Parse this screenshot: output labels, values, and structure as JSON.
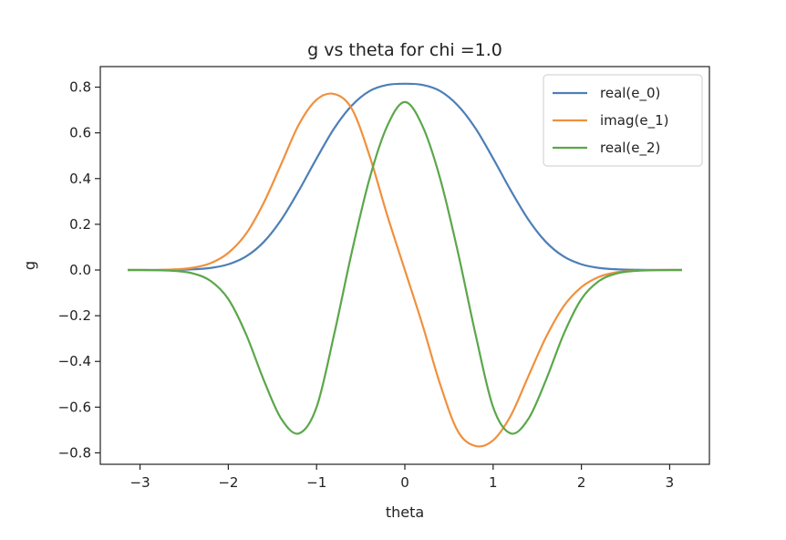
{
  "chart_data": {
    "type": "line",
    "title": "g vs theta for chi =1.0",
    "xlabel": "theta",
    "ylabel": "g",
    "xlim": [
      -3.45,
      3.45
    ],
    "ylim": [
      -0.85,
      0.89
    ],
    "xticks": [
      -3,
      -2,
      -1,
      0,
      1,
      2,
      3
    ],
    "xtick_labels": [
      "−3",
      "−2",
      "−1",
      "0",
      "1",
      "2",
      "3"
    ],
    "yticks": [
      -0.8,
      -0.6,
      -0.4,
      -0.2,
      0.0,
      0.2,
      0.4,
      0.6,
      0.8
    ],
    "ytick_labels": [
      "−0.8",
      "−0.6",
      "−0.4",
      "−0.2",
      "0.0",
      "0.2",
      "0.4",
      "0.6",
      "0.8"
    ],
    "grid": false,
    "legend_position": "top-right",
    "x": [
      -3.14,
      -3.0,
      -2.8,
      -2.6,
      -2.4,
      -2.2,
      -2.0,
      -1.8,
      -1.6,
      -1.4,
      -1.2,
      -1.0,
      -0.8,
      -0.6,
      -0.4,
      -0.2,
      0.0,
      0.2,
      0.4,
      0.6,
      0.8,
      1.0,
      1.2,
      1.4,
      1.6,
      1.8,
      2.0,
      2.2,
      2.4,
      2.6,
      2.8,
      3.0,
      3.14
    ],
    "series": [
      {
        "name": "real(e_0)",
        "color": "#4c7fb8",
        "values": [
          0.0,
          0.0,
          0.0,
          0.001,
          0.003,
          0.009,
          0.025,
          0.059,
          0.122,
          0.22,
          0.348,
          0.488,
          0.62,
          0.72,
          0.783,
          0.81,
          0.815,
          0.81,
          0.783,
          0.72,
          0.62,
          0.488,
          0.348,
          0.22,
          0.122,
          0.059,
          0.025,
          0.009,
          0.003,
          0.001,
          0.0,
          0.0,
          0.0
        ]
      },
      {
        "name": "imag(e_1)",
        "color": "#f0903d",
        "values": [
          0.0,
          0.0,
          0.0,
          0.003,
          0.01,
          0.03,
          0.075,
          0.158,
          0.293,
          0.464,
          0.637,
          0.745,
          0.77,
          0.705,
          0.5,
          0.24,
          0.0,
          -0.24,
          -0.5,
          -0.705,
          -0.77,
          -0.745,
          -0.637,
          -0.464,
          -0.293,
          -0.158,
          -0.075,
          -0.03,
          -0.01,
          -0.003,
          0.0,
          0.0,
          0.0
        ]
      },
      {
        "name": "real(e_2)",
        "color": "#5ba74a",
        "values": [
          0.0,
          0.0,
          -0.001,
          -0.004,
          -0.015,
          -0.048,
          -0.127,
          -0.28,
          -0.48,
          -0.651,
          -0.715,
          -0.6,
          -0.28,
          0.08,
          0.4,
          0.63,
          0.735,
          0.63,
          0.4,
          0.08,
          -0.28,
          -0.6,
          -0.715,
          -0.651,
          -0.48,
          -0.28,
          -0.127,
          -0.048,
          -0.015,
          -0.004,
          -0.001,
          0.0,
          0.0
        ]
      }
    ]
  }
}
